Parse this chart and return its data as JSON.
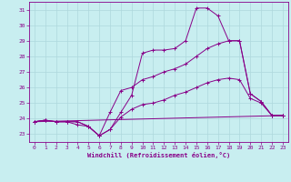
{
  "xlabel": "Windchill (Refroidissement éolien,°C)",
  "xlim": [
    -0.5,
    23.5
  ],
  "ylim": [
    22.5,
    31.5
  ],
  "yticks": [
    23,
    24,
    25,
    26,
    27,
    28,
    29,
    30,
    31
  ],
  "xticks": [
    0,
    1,
    2,
    3,
    4,
    5,
    6,
    7,
    8,
    9,
    10,
    11,
    12,
    13,
    14,
    15,
    16,
    17,
    18,
    19,
    20,
    21,
    22,
    23
  ],
  "background_color": "#c8eef0",
  "grid_color": "#aed8dc",
  "line_color": "#880088",
  "line1_x": [
    0,
    1,
    2,
    3,
    4,
    5,
    6,
    7,
    8,
    9,
    10,
    11,
    12,
    13,
    14,
    15,
    16,
    17,
    18,
    19,
    20,
    21,
    22,
    23
  ],
  "line1_y": [
    23.8,
    23.9,
    23.8,
    23.8,
    23.8,
    23.5,
    22.9,
    23.3,
    24.1,
    24.6,
    24.9,
    25.0,
    25.2,
    25.5,
    25.7,
    26.0,
    26.3,
    26.5,
    26.6,
    26.5,
    25.3,
    25.0,
    24.2,
    24.2
  ],
  "line2_x": [
    0,
    1,
    2,
    3,
    4,
    5,
    6,
    7,
    8,
    9,
    10,
    11,
    12,
    13,
    14,
    15,
    16,
    17,
    18,
    19,
    20,
    21,
    22,
    23
  ],
  "line2_y": [
    23.8,
    23.9,
    23.8,
    23.8,
    23.6,
    23.5,
    22.9,
    23.3,
    24.4,
    25.5,
    28.2,
    28.4,
    28.4,
    28.5,
    29.0,
    31.1,
    31.1,
    30.6,
    29.0,
    29.0,
    25.6,
    25.1,
    24.2,
    24.2
  ],
  "line3_x": [
    0,
    1,
    2,
    3,
    4,
    5,
    6,
    7,
    8,
    9,
    10,
    11,
    12,
    13,
    14,
    15,
    16,
    17,
    18,
    19,
    20,
    21,
    22,
    23
  ],
  "line3_y": [
    23.8,
    23.9,
    23.8,
    23.8,
    23.8,
    23.5,
    22.9,
    24.4,
    25.8,
    26.0,
    26.5,
    26.7,
    27.0,
    27.2,
    27.5,
    28.0,
    28.5,
    28.8,
    29.0,
    29.0,
    25.6,
    25.1,
    24.2,
    24.2
  ],
  "line4_x": [
    0,
    23
  ],
  "line4_y": [
    23.8,
    24.2
  ],
  "tick_fontsize": 4.5,
  "xlabel_fontsize": 5.0
}
